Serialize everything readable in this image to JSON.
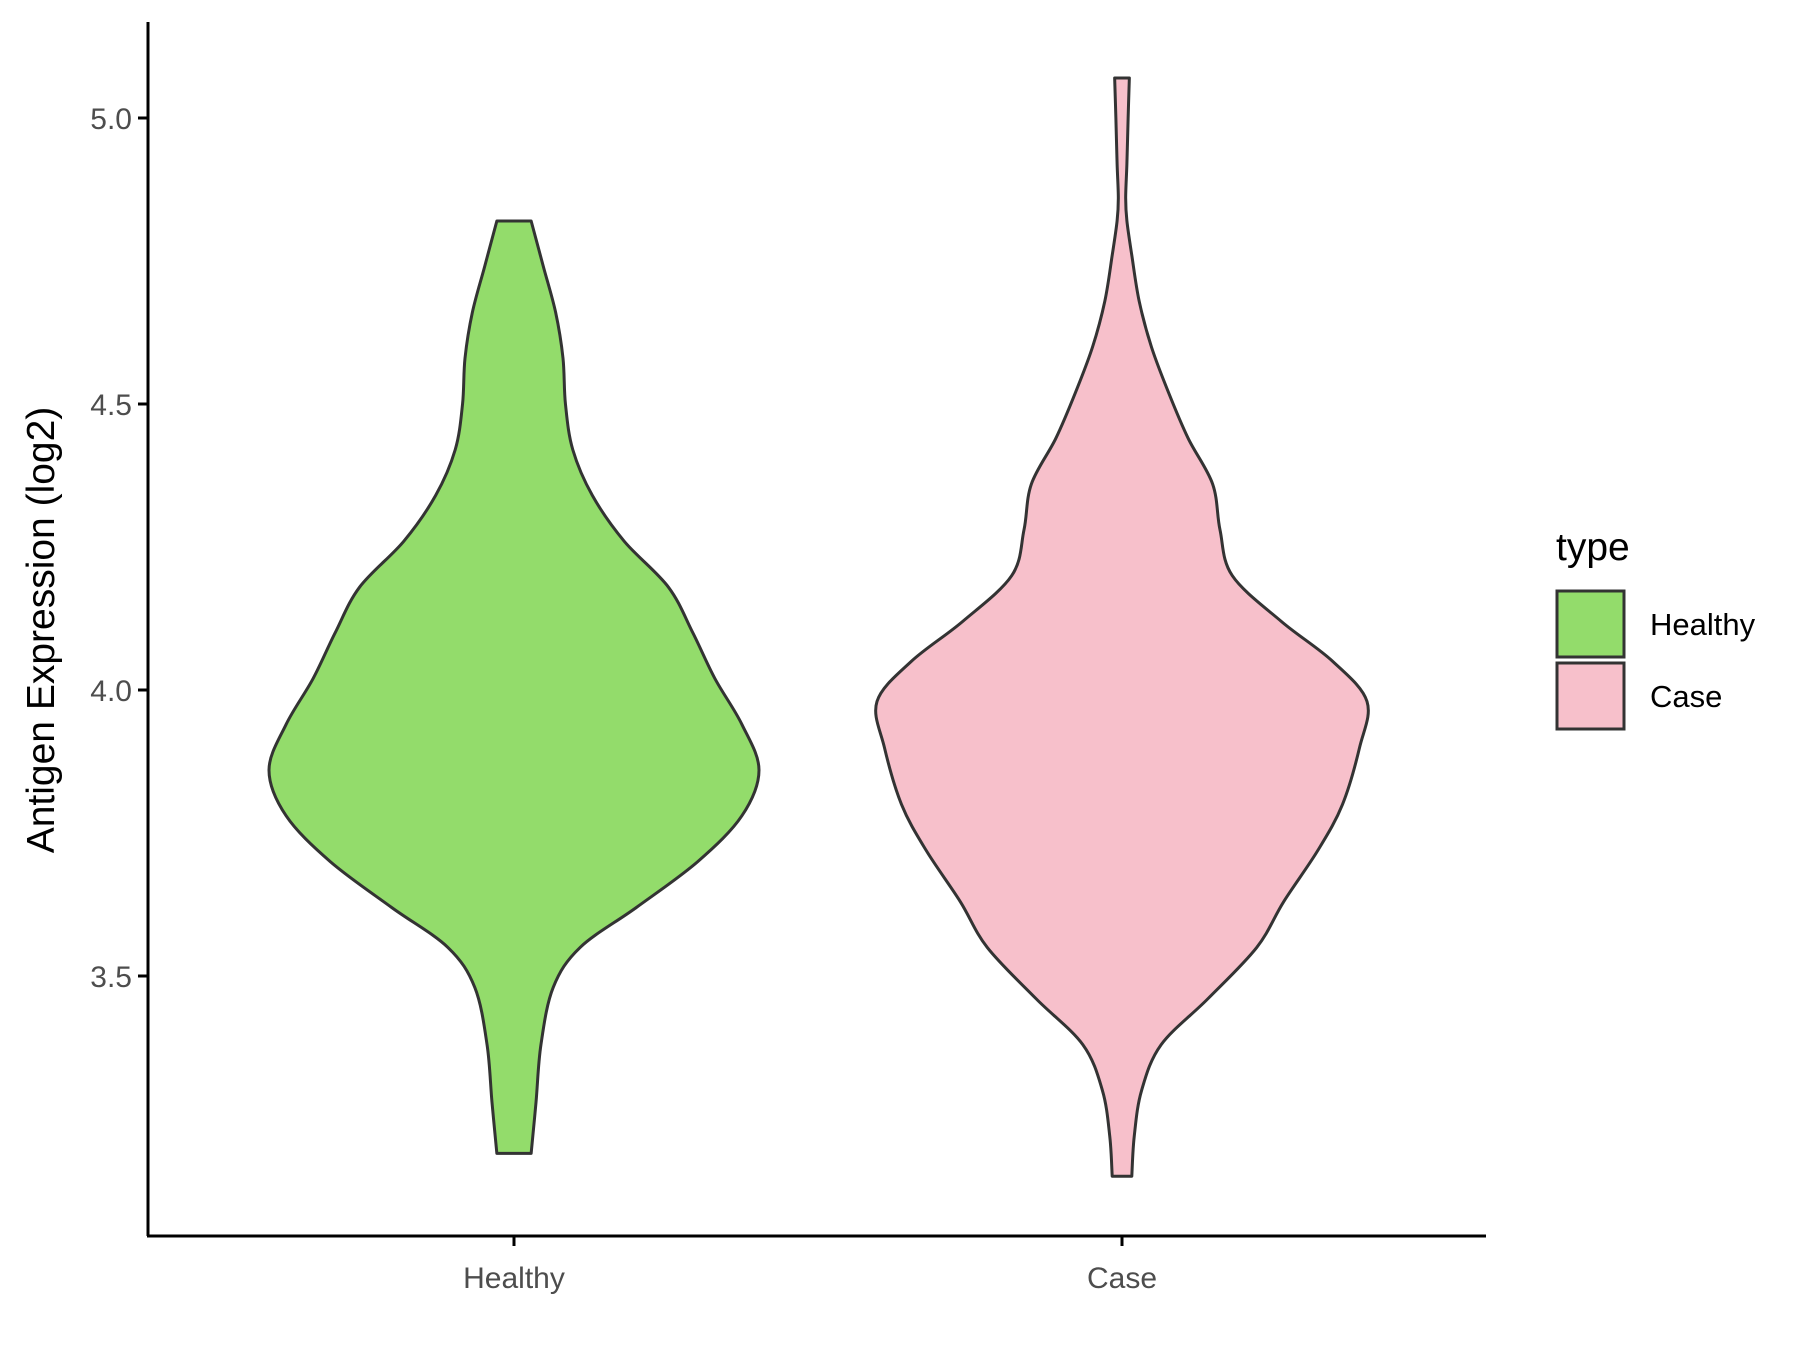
{
  "chart_data": {
    "type": "violin",
    "categories": [
      "Healthy",
      "Case"
    ],
    "ylabel": "Antigen Expression (log2)",
    "xlabel": "",
    "ylim": [
      3.05,
      5.17
    ],
    "yticks": [
      3.5,
      4.0,
      4.5,
      5.0
    ],
    "ytick_labels": [
      "3.5",
      "4.0",
      "4.5",
      "5.0"
    ],
    "series": [
      {
        "name": "Healthy",
        "color": "#93dc6b",
        "range": [
          3.19,
          4.82
        ],
        "density_profile": [
          [
            3.19,
            0.07
          ],
          [
            3.28,
            0.09
          ],
          [
            3.38,
            0.11
          ],
          [
            3.48,
            0.16
          ],
          [
            3.55,
            0.27
          ],
          [
            3.62,
            0.5
          ],
          [
            3.7,
            0.75
          ],
          [
            3.78,
            0.93
          ],
          [
            3.86,
            1.0
          ],
          [
            3.94,
            0.93
          ],
          [
            4.02,
            0.82
          ],
          [
            4.1,
            0.73
          ],
          [
            4.18,
            0.63
          ],
          [
            4.26,
            0.45
          ],
          [
            4.34,
            0.32
          ],
          [
            4.42,
            0.24
          ],
          [
            4.5,
            0.21
          ],
          [
            4.58,
            0.2
          ],
          [
            4.66,
            0.17
          ],
          [
            4.74,
            0.12
          ],
          [
            4.82,
            0.07
          ]
        ]
      },
      {
        "name": "Case",
        "color": "#f7c0cb",
        "range": [
          3.15,
          5.07
        ],
        "density_profile": [
          [
            3.15,
            0.04
          ],
          [
            3.22,
            0.05
          ],
          [
            3.3,
            0.08
          ],
          [
            3.38,
            0.16
          ],
          [
            3.46,
            0.35
          ],
          [
            3.55,
            0.55
          ],
          [
            3.63,
            0.66
          ],
          [
            3.72,
            0.8
          ],
          [
            3.8,
            0.9
          ],
          [
            3.9,
            0.97
          ],
          [
            3.98,
            1.0
          ],
          [
            4.05,
            0.86
          ],
          [
            4.12,
            0.65
          ],
          [
            4.2,
            0.45
          ],
          [
            4.28,
            0.4
          ],
          [
            4.36,
            0.37
          ],
          [
            4.44,
            0.27
          ],
          [
            4.52,
            0.19
          ],
          [
            4.6,
            0.12
          ],
          [
            4.68,
            0.07
          ],
          [
            4.76,
            0.04
          ],
          [
            4.82,
            0.02
          ],
          [
            4.86,
            0.015
          ],
          [
            4.92,
            0.02
          ],
          [
            5.0,
            0.025
          ],
          [
            5.07,
            0.03
          ]
        ]
      }
    ],
    "legend": {
      "title": "type",
      "position": "right",
      "items": [
        {
          "label": "Healthy",
          "color": "#93dc6b"
        },
        {
          "label": "Case",
          "color": "#f7c0cb"
        }
      ]
    },
    "grid": false,
    "outline_color": "#333333"
  }
}
